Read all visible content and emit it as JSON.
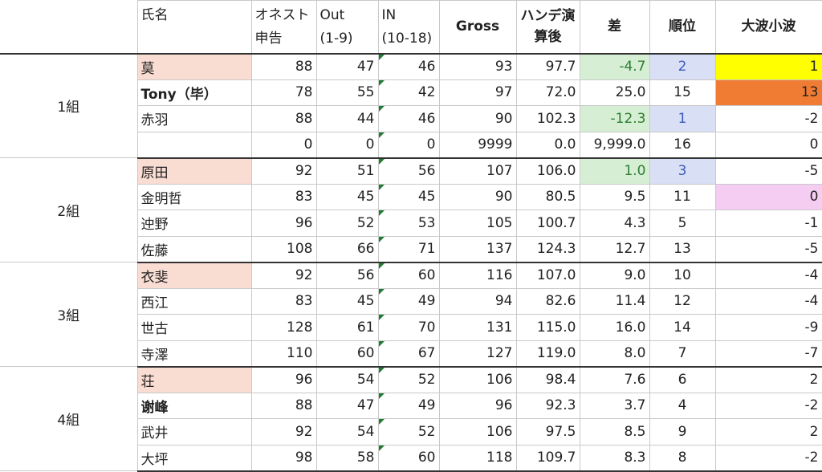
{
  "header": {
    "name": "氏名",
    "honest_l1": "オネスト",
    "honest_l2": "申告",
    "out_l1": "Out",
    "out_l2": "(1-9)",
    "in_l1": "IN",
    "in_l2": "(10-18)",
    "gross": "Gross",
    "hdcp_l1": "ハンデ演",
    "hdcp_l2": "算後",
    "diff": "差",
    "rank": "順位",
    "wave": "大波小波"
  },
  "groups": [
    {
      "label": "1組",
      "rows": [
        {
          "name": "莫",
          "honest": "88",
          "out": "47",
          "in": "46",
          "gross": "93",
          "hdcp": "97.7",
          "diff": "-4.7",
          "rank": "2",
          "wave": "1"
        },
        {
          "name": "Tony（毕）",
          "honest": "78",
          "out": "55",
          "in": "42",
          "gross": "97",
          "hdcp": "72.0",
          "diff": "25.0",
          "rank": "15",
          "wave": "13"
        },
        {
          "name": "赤羽",
          "honest": "88",
          "out": "44",
          "in": "46",
          "gross": "90",
          "hdcp": "102.3",
          "diff": "-12.3",
          "rank": "1",
          "wave": "-2"
        },
        {
          "name": "",
          "honest": "0",
          "out": "0",
          "in": "0",
          "gross": "9999",
          "hdcp": "0.0",
          "diff": "9,999.0",
          "rank": "16",
          "wave": "0"
        }
      ]
    },
    {
      "label": "2組",
      "rows": [
        {
          "name": "原田",
          "honest": "92",
          "out": "51",
          "in": "56",
          "gross": "107",
          "hdcp": "106.0",
          "diff": "1.0",
          "rank": "3",
          "wave": "-5"
        },
        {
          "name": "金明哲",
          "honest": "83",
          "out": "45",
          "in": "45",
          "gross": "90",
          "hdcp": "80.5",
          "diff": "9.5",
          "rank": "11",
          "wave": "0"
        },
        {
          "name": "迚野",
          "honest": "96",
          "out": "52",
          "in": "53",
          "gross": "105",
          "hdcp": "100.7",
          "diff": "4.3",
          "rank": "5",
          "wave": "-1"
        },
        {
          "name": "佐藤",
          "honest": "108",
          "out": "66",
          "in": "71",
          "gross": "137",
          "hdcp": "124.3",
          "diff": "12.7",
          "rank": "13",
          "wave": "-5"
        }
      ]
    },
    {
      "label": "3組",
      "rows": [
        {
          "name": "衣斐",
          "honest": "92",
          "out": "56",
          "in": "60",
          "gross": "116",
          "hdcp": "107.0",
          "diff": "9.0",
          "rank": "10",
          "wave": "-4"
        },
        {
          "name": "西江",
          "honest": "83",
          "out": "45",
          "in": "49",
          "gross": "94",
          "hdcp": "82.6",
          "diff": "11.4",
          "rank": "12",
          "wave": "-4"
        },
        {
          "name": "世古",
          "honest": "128",
          "out": "61",
          "in": "70",
          "gross": "131",
          "hdcp": "115.0",
          "diff": "16.0",
          "rank": "14",
          "wave": "-9"
        },
        {
          "name": "寺澤",
          "honest": "110",
          "out": "60",
          "in": "67",
          "gross": "127",
          "hdcp": "119.0",
          "diff": "8.0",
          "rank": "7",
          "wave": "-7"
        }
      ]
    },
    {
      "label": "4組",
      "rows": [
        {
          "name": "荘",
          "honest": "96",
          "out": "54",
          "in": "52",
          "gross": "106",
          "hdcp": "98.4",
          "diff": "7.6",
          "rank": "6",
          "wave": "2"
        },
        {
          "name": "谢峰",
          "honest": "88",
          "out": "47",
          "in": "49",
          "gross": "96",
          "hdcp": "92.3",
          "diff": "3.7",
          "rank": "4",
          "wave": "-2"
        },
        {
          "name": "武井",
          "honest": "92",
          "out": "54",
          "in": "52",
          "gross": "106",
          "hdcp": "97.5",
          "diff": "8.5",
          "rank": "9",
          "wave": "2"
        },
        {
          "name": "大坪",
          "honest": "98",
          "out": "58",
          "in": "60",
          "gross": "118",
          "hdcp": "109.7",
          "diff": "8.3",
          "rank": "8",
          "wave": "-2"
        }
      ]
    }
  ]
}
